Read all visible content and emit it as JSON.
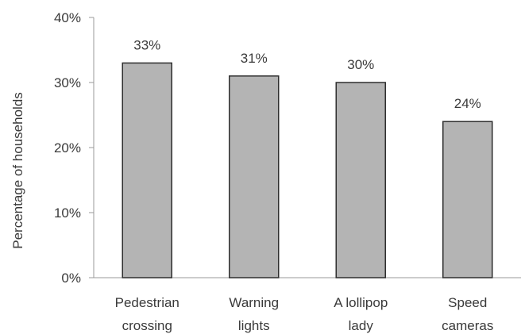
{
  "chart_data": {
    "type": "bar",
    "title": "",
    "ylabel": "Percentage of households",
    "xlabel": "",
    "categories": [
      [
        "Pedestrian",
        "crossing"
      ],
      [
        "Warning",
        "lights"
      ],
      [
        "A lollipop",
        "lady"
      ],
      [
        "Speed",
        "cameras"
      ]
    ],
    "values": [
      33,
      31,
      30,
      24
    ],
    "data_labels": [
      "33%",
      "31%",
      "30%",
      "24%"
    ],
    "yticks": [
      0,
      10,
      20,
      30,
      40
    ],
    "ytick_labels": [
      "0%",
      "10%",
      "20%",
      "30%",
      "40%"
    ],
    "ylim": [
      0,
      40
    ],
    "grid": false,
    "legend": "none",
    "colors": {
      "bar_fill": "#b4b4b4",
      "bar_stroke": "#2e2e2e",
      "axis": "#999999",
      "text": "#3a3a3a"
    }
  }
}
